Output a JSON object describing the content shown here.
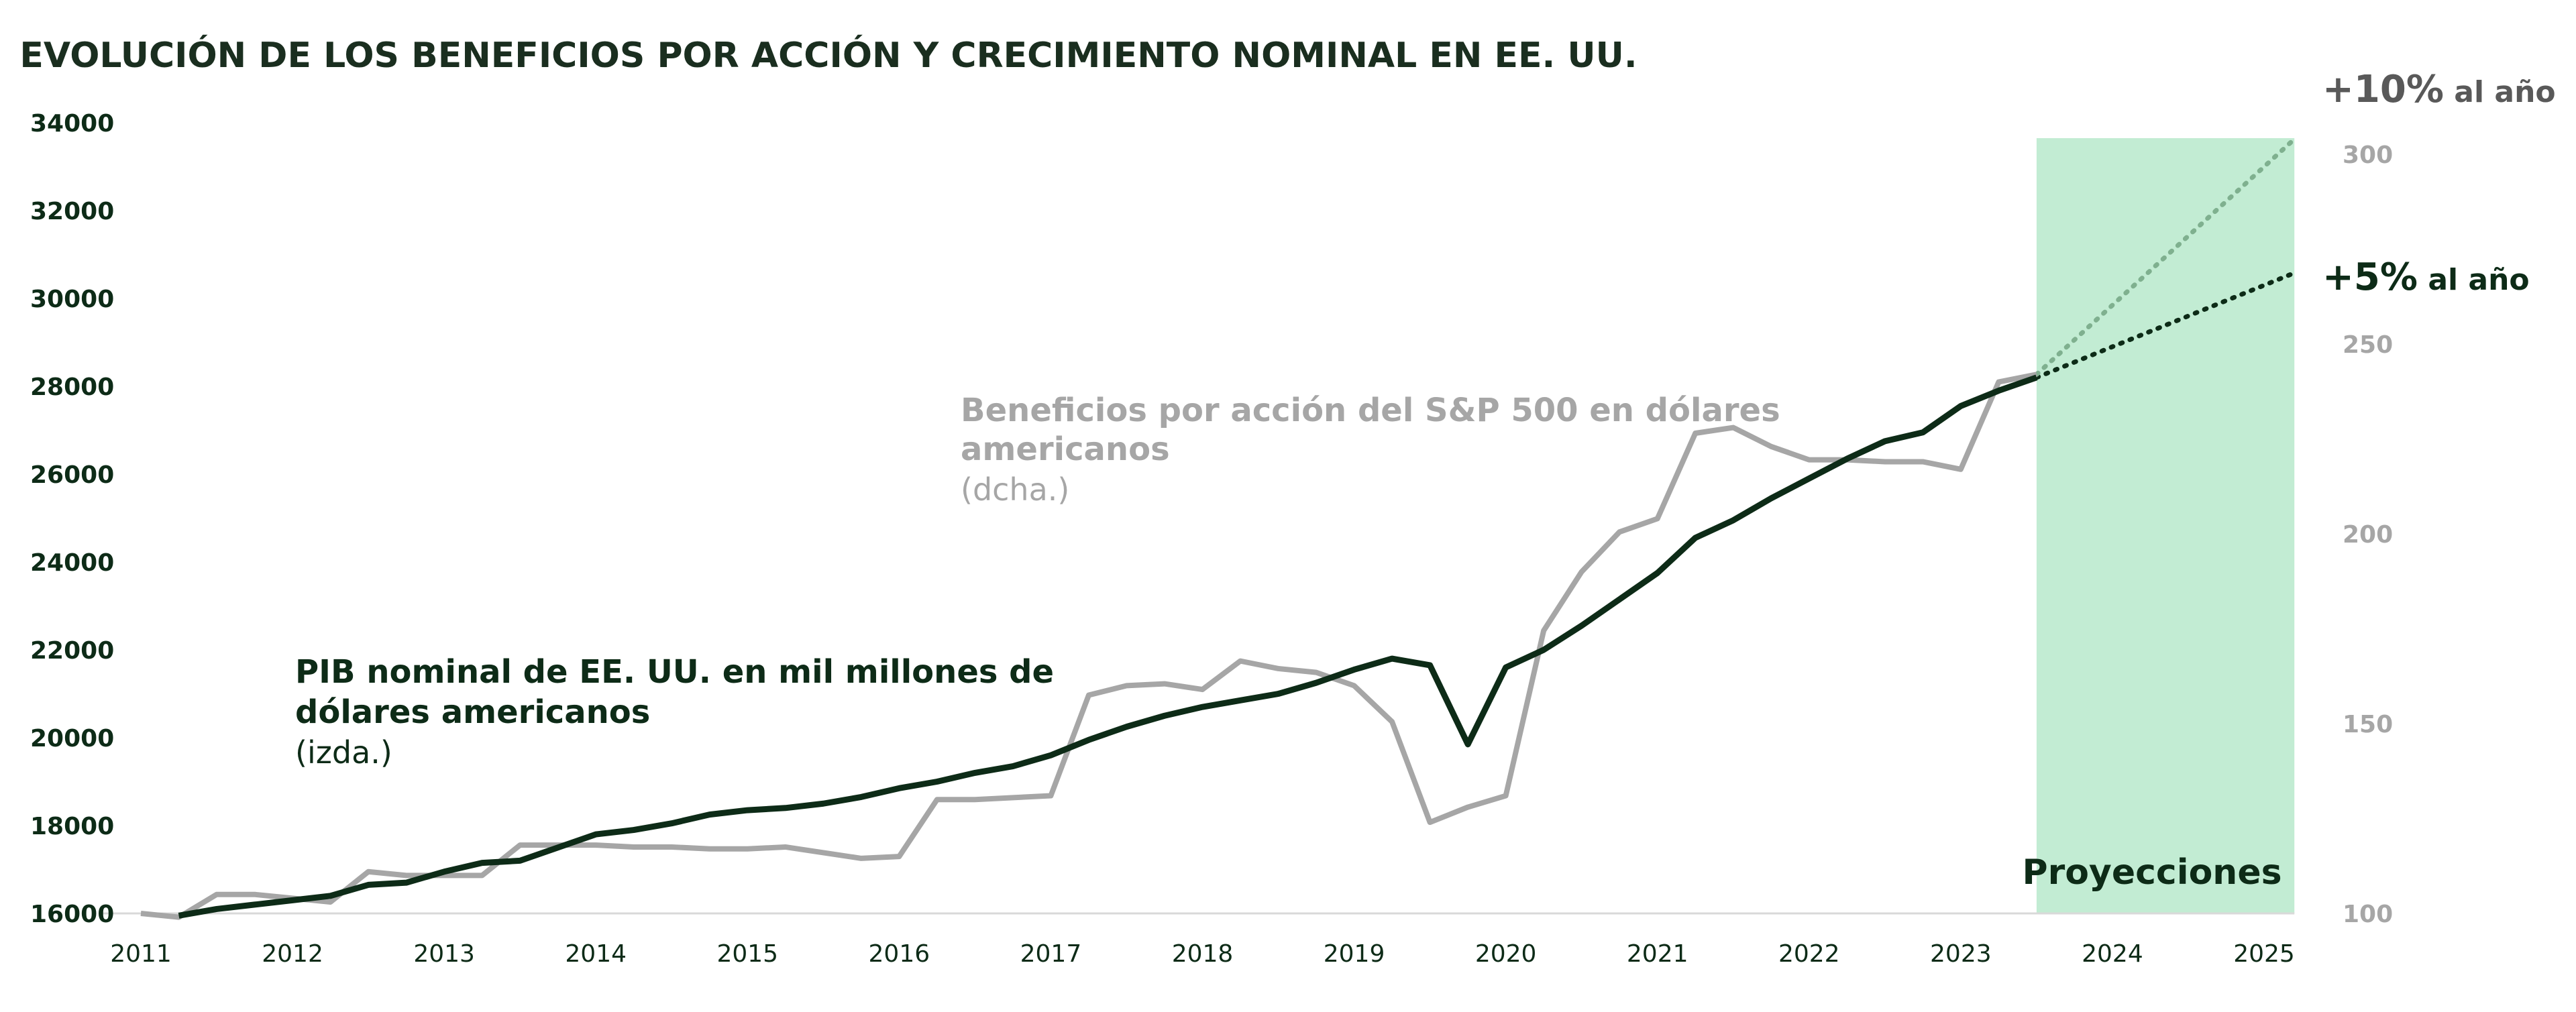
{
  "chart_data": {
    "type": "line",
    "title": "EVOLUCIÓN DE LOS BENEFICIOS POR ACCIÓN Y CRECIMIENTO NOMINAL EN EE. UU.",
    "xlabel": "",
    "x_ticks": [
      "2011",
      "2012",
      "2013",
      "2014",
      "2015",
      "2016",
      "2017",
      "2018",
      "2019",
      "2020",
      "2021",
      "2022",
      "2023",
      "2024",
      "2025"
    ],
    "xlim": [
      2011,
      2025.2
    ],
    "y_left": {
      "label": "PIB nominal de EE. UU. en mil millones de dólares americanos (izda.)",
      "ticks": [
        "16000",
        "18000",
        "20000",
        "22000",
        "24000",
        "26000",
        "28000",
        "30000",
        "32000",
        "34000"
      ],
      "ylim": [
        16000,
        34000
      ]
    },
    "y_right": {
      "label": "Beneficios por acción del S&P 500 en dólares americanos (dcha.)",
      "ticks": [
        "100",
        "150",
        "200",
        "250",
        "300"
      ],
      "ylim": [
        100,
        300
      ]
    },
    "grid": false,
    "legend": "inline annotations",
    "projection_band": {
      "label": "Proyecciones",
      "start": 2023.5,
      "end": 2025.2,
      "color": "#c2ecd3"
    },
    "series": [
      {
        "name": "PIB nominal de EE. UU. en mil millones de dólares americanos",
        "axis": "left",
        "color": "#0d2b17",
        "x": [
          2011.25,
          2011.5,
          2011.75,
          2012.0,
          2012.25,
          2012.5,
          2012.75,
          2013.0,
          2013.25,
          2013.5,
          2013.75,
          2014.0,
          2014.25,
          2014.5,
          2014.75,
          2015.0,
          2015.25,
          2015.5,
          2015.75,
          2016.0,
          2016.25,
          2016.5,
          2016.75,
          2017.0,
          2017.25,
          2017.5,
          2017.75,
          2018.0,
          2018.25,
          2018.5,
          2018.75,
          2019.0,
          2019.25,
          2019.5,
          2019.75,
          2020.0,
          2020.25,
          2020.5,
          2020.75,
          2021.0,
          2021.25,
          2021.5,
          2021.75,
          2022.0,
          2022.25,
          2022.5,
          2022.75,
          2023.0,
          2023.25,
          2023.5
        ],
        "values": [
          15950,
          16100,
          16200,
          16300,
          16400,
          16650,
          16700,
          16950,
          17150,
          17200,
          17500,
          17800,
          17900,
          18050,
          18250,
          18350,
          18400,
          18500,
          18650,
          18850,
          19000,
          19200,
          19350,
          19600,
          19950,
          20250,
          20500,
          20700,
          20850,
          21000,
          21250,
          21550,
          21800,
          21650,
          19850,
          21600,
          22000,
          22550,
          23150,
          23750,
          24550,
          24950,
          25450,
          25900,
          26350,
          26750,
          26950,
          27550,
          27900,
          28200
        ]
      },
      {
        "name": "Beneficios por acción del S&P 500 en dólares americanos",
        "axis": "right",
        "color": "#a6a6a6",
        "x": [
          2011.0,
          2011.25,
          2011.5,
          2011.75,
          2012.0,
          2012.25,
          2012.5,
          2012.75,
          2013.0,
          2013.25,
          2013.5,
          2013.75,
          2014.0,
          2014.25,
          2014.5,
          2014.75,
          2015.0,
          2015.25,
          2015.5,
          2015.75,
          2016.0,
          2016.25,
          2016.5,
          2016.75,
          2017.0,
          2017.25,
          2017.5,
          2017.75,
          2018.0,
          2018.25,
          2018.5,
          2018.75,
          2019.0,
          2019.25,
          2019.5,
          2019.75,
          2020.0,
          2020.25,
          2020.5,
          2020.75,
          2021.0,
          2021.25,
          2021.5,
          2021.75,
          2022.0,
          2022.25,
          2022.5,
          2022.75,
          2023.0,
          2023.25,
          2023.5
        ],
        "values": [
          100,
          99,
          105,
          105,
          104,
          103,
          111,
          110,
          110,
          110,
          118,
          118,
          118,
          117.5,
          117.5,
          117,
          117,
          117.5,
          116,
          114.5,
          115,
          130,
          130,
          130.5,
          131,
          157.5,
          160,
          160.5,
          159,
          166.5,
          164.5,
          163.5,
          160,
          150.5,
          124,
          128,
          131,
          174.5,
          190,
          200.5,
          204,
          226.5,
          228,
          223,
          219.5,
          219.5,
          219,
          219,
          217,
          240,
          242
        ]
      }
    ],
    "projections": [
      {
        "name": "+5% al año",
        "axis": "left",
        "color": "#0d2b17",
        "style": "dotted",
        "x": [
          2023.5,
          2025.2
        ],
        "values": [
          28200,
          30580
        ]
      },
      {
        "name": "+10% al año",
        "axis": "right",
        "color": "#7fb08f",
        "style": "dotted",
        "x": [
          2023.5,
          2025.2
        ],
        "values": [
          242,
          304
        ]
      }
    ],
    "annotations": {
      "gdp_label_line1": "PIB nominal de EE. UU. en mil millones de",
      "gdp_label_line2": "dólares americanos",
      "gdp_label_axis": "(izda.)",
      "eps_label_line1": "Beneficios por acción del S&P 500 en dólares",
      "eps_label_line2": "americanos",
      "eps_label_axis": "(dcha.)",
      "rate10_big": "+10%",
      "rate10_small": " al año",
      "rate5_big": "+5%",
      "rate5_small": " al año",
      "projections": "Proyecciones"
    }
  }
}
